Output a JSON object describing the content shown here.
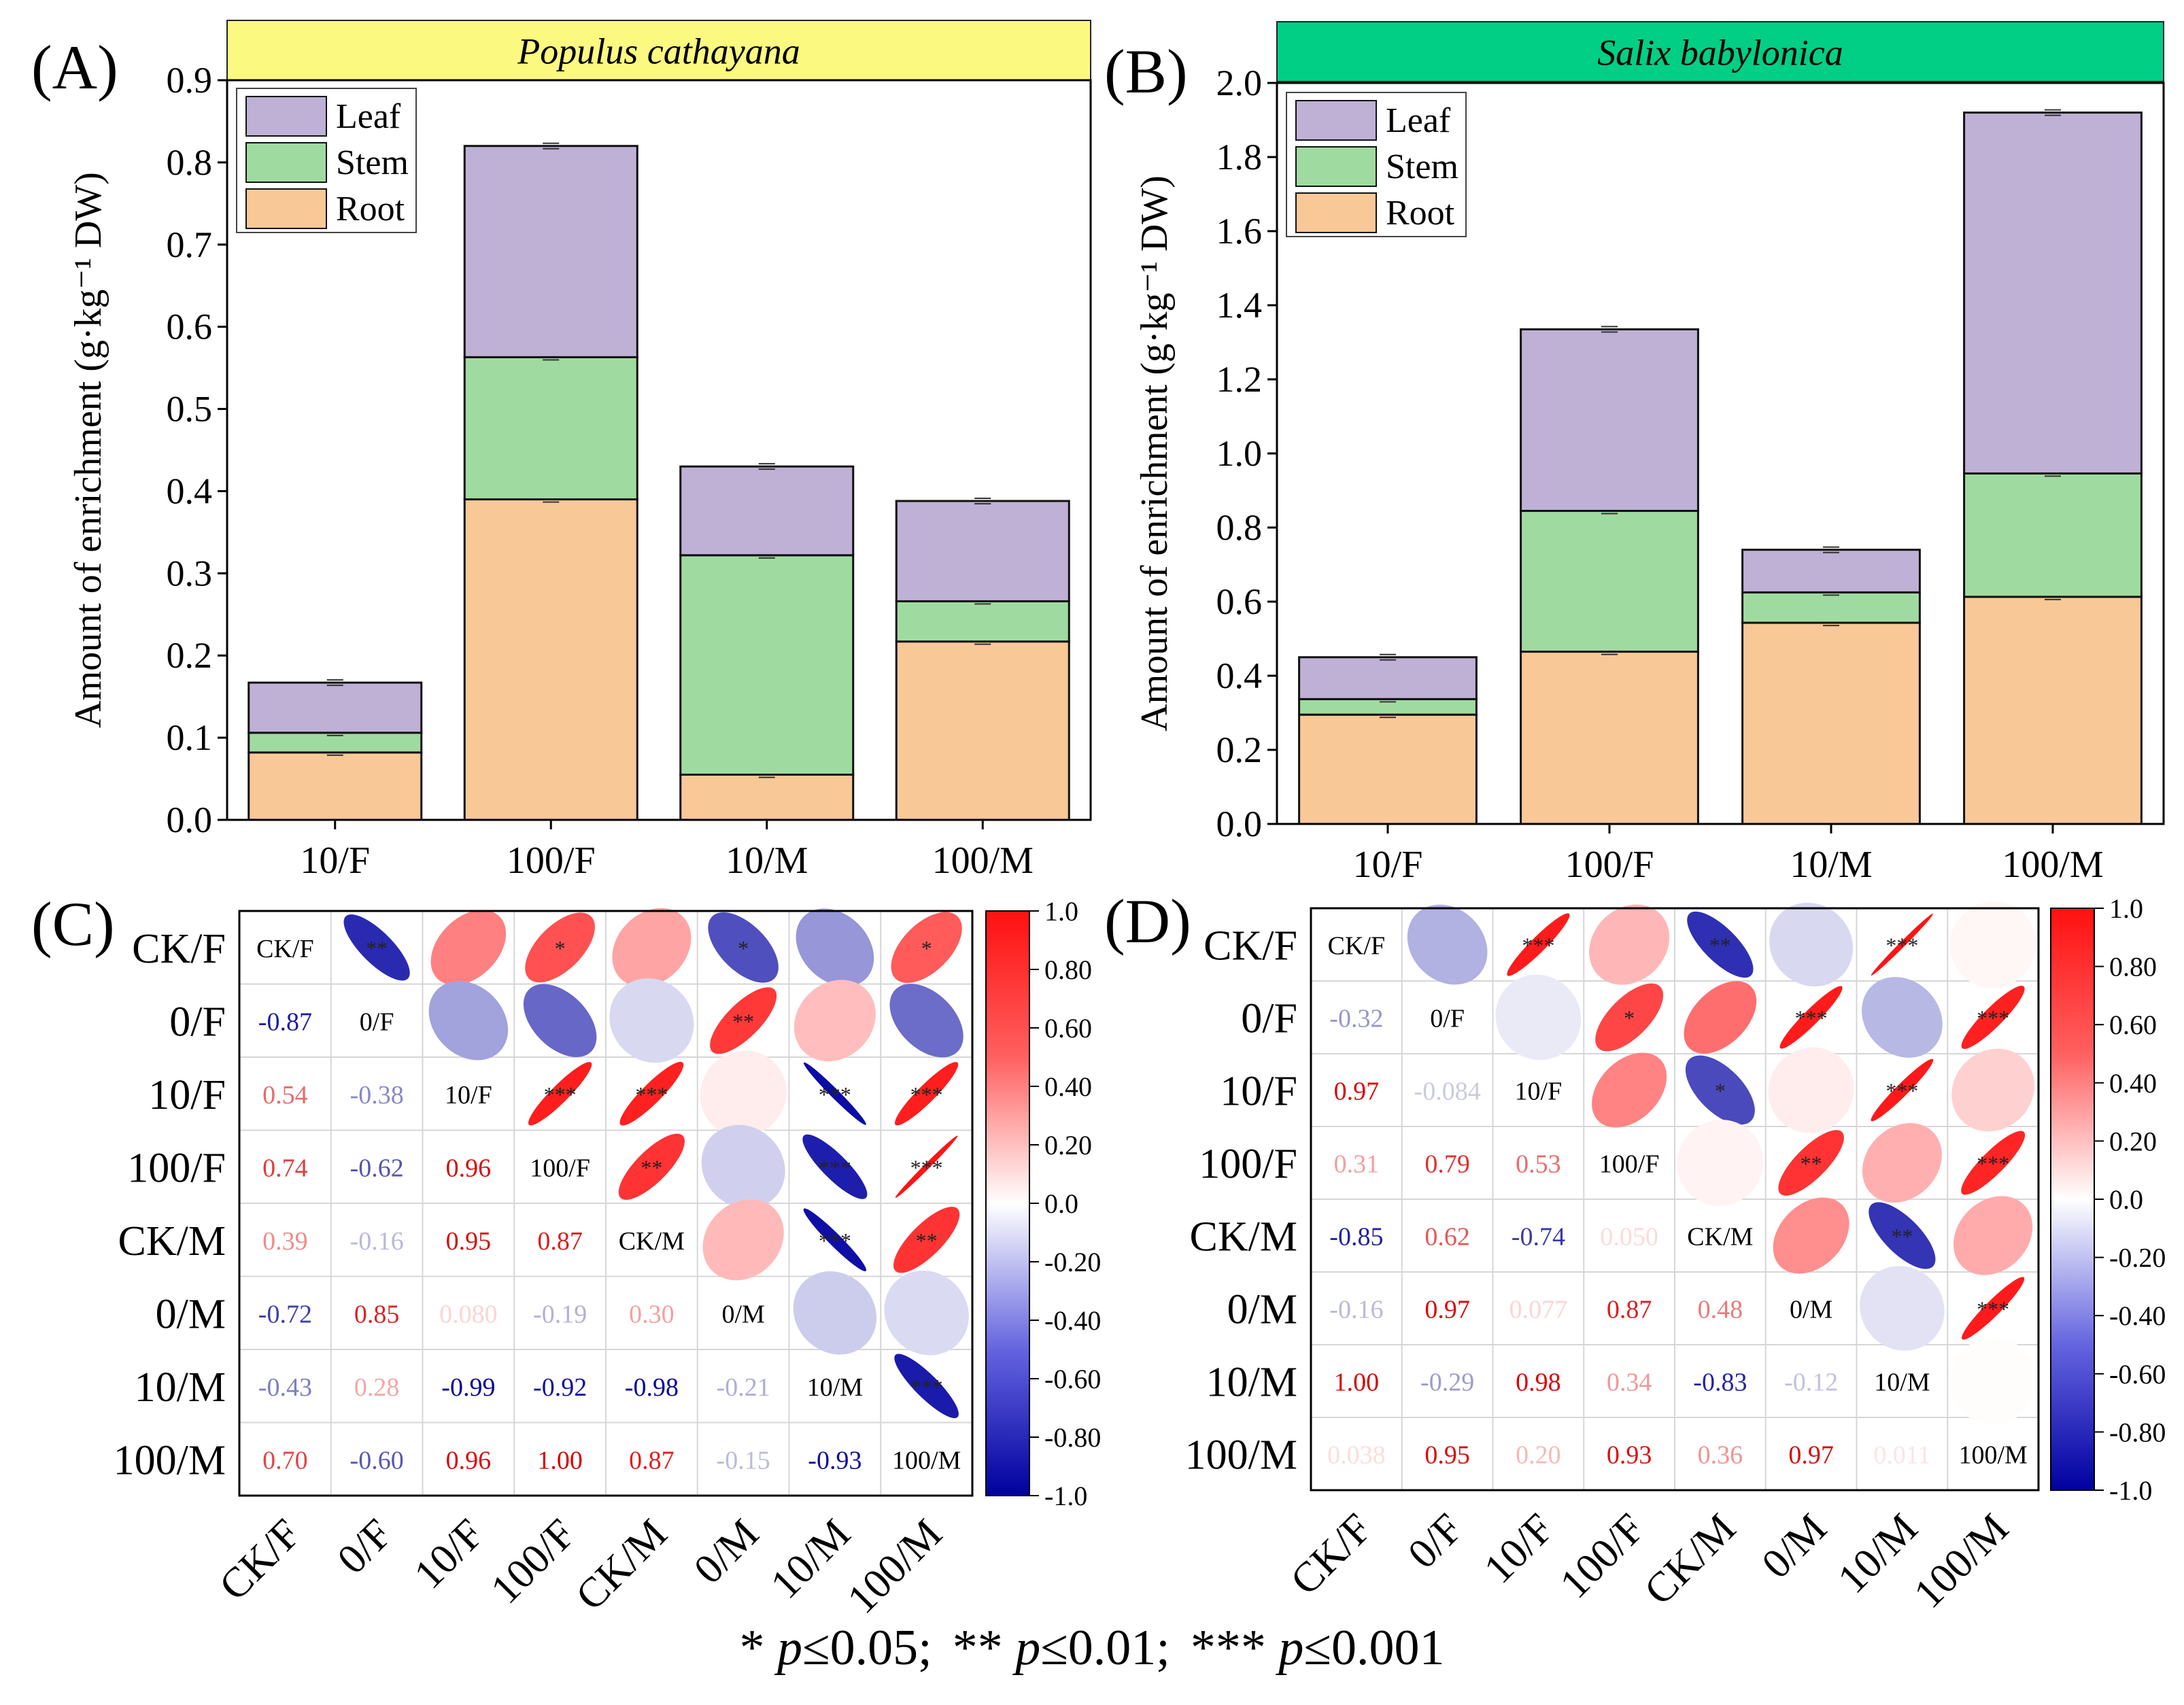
{
  "footnote": {
    "s1": "* ",
    "p1": "p",
    "t1": "≤0.05;",
    "s2": "** ",
    "p2": "p",
    "t2": "≤0.01;",
    "s3": "*** ",
    "p3": "p",
    "t3": "≤0.001"
  },
  "colors": {
    "leaf": "#bfb0d6",
    "stem": "#9fdba0",
    "root": "#f9c897",
    "banner_a": "#fbf980",
    "banner_b": "#00cf85",
    "neg": "#0a0aa6",
    "pos": "#ff1f1f"
  },
  "chart_data": [
    {
      "type": "bar",
      "stacked": true,
      "panel_label": "(A)",
      "title": "Populus cathayana",
      "ylabel": "Amount of enrichment (g·kg⁻¹ DW)",
      "ylim": [
        0,
        0.9
      ],
      "yticks": [
        "0.0",
        "0.1",
        "0.2",
        "0.3",
        "0.4",
        "0.5",
        "0.6",
        "0.7",
        "0.8",
        "0.9"
      ],
      "categories": [
        "10/F",
        "100/F",
        "10/M",
        "100/M"
      ],
      "legend": "top-left",
      "series": [
        {
          "name": "Root",
          "values": [
            0.082,
            0.39,
            0.055,
            0.217
          ]
        },
        {
          "name": "Stem",
          "values": [
            0.024,
            0.173,
            0.267,
            0.049
          ]
        },
        {
          "name": "Leaf",
          "values": [
            0.061,
            0.257,
            0.108,
            0.122
          ]
        }
      ],
      "totals": [
        0.167,
        0.82,
        0.43,
        0.388
      ]
    },
    {
      "type": "bar",
      "stacked": true,
      "panel_label": "(B)",
      "title": "Salix babylonica",
      "ylabel": "Amount of enrichment (g·kg⁻¹ DW)",
      "ylim": [
        0,
        2.0
      ],
      "yticks": [
        "0.0",
        "0.2",
        "0.4",
        "0.6",
        "0.8",
        "1.0",
        "1.2",
        "1.4",
        "1.6",
        "1.8",
        "2.0"
      ],
      "categories": [
        "10/F",
        "100/F",
        "10/M",
        "100/M"
      ],
      "legend": "top-left",
      "series": [
        {
          "name": "Root",
          "values": [
            0.295,
            0.465,
            0.543,
            0.613
          ]
        },
        {
          "name": "Stem",
          "values": [
            0.042,
            0.38,
            0.082,
            0.333
          ]
        },
        {
          "name": "Leaf",
          "values": [
            0.113,
            0.49,
            0.115,
            0.974
          ]
        }
      ],
      "totals": [
        0.45,
        1.335,
        0.74,
        1.92
      ]
    },
    {
      "type": "heatmap",
      "panel_label": "(C)",
      "labels": [
        "CK/F",
        "0/F",
        "10/F",
        "100/F",
        "CK/M",
        "0/M",
        "10/M",
        "100/M"
      ],
      "values": [
        [
          1,
          -0.87,
          0.54,
          0.74,
          0.39,
          -0.72,
          -0.43,
          0.7
        ],
        [
          -0.87,
          1,
          -0.38,
          -0.62,
          -0.16,
          0.85,
          0.28,
          -0.6
        ],
        [
          0.54,
          -0.38,
          1,
          0.96,
          0.95,
          0.08,
          -0.99,
          0.96
        ],
        [
          0.74,
          -0.62,
          0.96,
          1,
          0.87,
          -0.19,
          -0.92,
          1.0
        ],
        [
          0.39,
          -0.16,
          0.95,
          0.87,
          1,
          0.3,
          -0.98,
          0.87
        ],
        [
          -0.72,
          0.85,
          0.08,
          -0.19,
          0.3,
          1,
          -0.21,
          -0.15
        ],
        [
          -0.43,
          0.28,
          -0.99,
          -0.92,
          -0.98,
          -0.21,
          1,
          -0.93
        ],
        [
          0.7,
          -0.6,
          0.96,
          1.0,
          0.87,
          -0.15,
          -0.93,
          1
        ]
      ],
      "lower_text": [
        [],
        [
          "-0.87"
        ],
        [
          "0.54",
          "-0.38"
        ],
        [
          "0.74",
          "-0.62",
          "0.96"
        ],
        [
          "0.39",
          "-0.16",
          "0.95",
          "0.87"
        ],
        [
          "-0.72",
          "0.85",
          "0.080",
          "-0.19",
          "0.30"
        ],
        [
          "-0.43",
          "0.28",
          "-0.99",
          "-0.92",
          "-0.98",
          "-0.21"
        ],
        [
          "0.70",
          "-0.60",
          "0.96",
          "1.00",
          "0.87",
          "-0.15",
          "-0.93"
        ]
      ],
      "significance": [
        [
          "",
          "**",
          "",
          "*",
          "",
          "*",
          "",
          "*"
        ],
        [
          "",
          "",
          "",
          "",
          "",
          "**",
          "",
          ""
        ],
        [
          "",
          "",
          "",
          "***",
          "***",
          "",
          "***",
          "***"
        ],
        [
          "",
          "",
          "",
          "",
          "**",
          "",
          "***",
          "***"
        ],
        [
          "",
          "",
          "",
          "",
          "",
          "",
          "***",
          "**"
        ],
        [
          "",
          "",
          "",
          "",
          "",
          "",
          "",
          ""
        ],
        [
          "",
          "",
          "",
          "",
          "",
          "",
          "",
          "***"
        ],
        [
          "",
          "",
          "",
          "",
          "",
          "",
          "",
          ""
        ]
      ],
      "colorbar_ticks": [
        "1.0",
        "0.80",
        "0.60",
        "0.40",
        "0.20",
        "0.0",
        "-0.20",
        "-0.40",
        "-0.60",
        "-0.80",
        "-1.0"
      ]
    },
    {
      "type": "heatmap",
      "panel_label": "(D)",
      "labels": [
        "CK/F",
        "0/F",
        "10/F",
        "100/F",
        "CK/M",
        "0/M",
        "10/M",
        "100/M"
      ],
      "values": [
        [
          1,
          -0.32,
          0.97,
          0.31,
          -0.85,
          -0.16,
          1.0,
          0.038
        ],
        [
          -0.32,
          1,
          -0.084,
          0.79,
          0.62,
          0.97,
          -0.29,
          0.95
        ],
        [
          0.97,
          -0.084,
          1,
          0.53,
          -0.74,
          0.077,
          0.98,
          0.2
        ],
        [
          0.31,
          0.79,
          0.53,
          1,
          0.05,
          0.87,
          0.34,
          0.93
        ],
        [
          -0.85,
          0.62,
          -0.74,
          0.05,
          1,
          0.48,
          -0.83,
          0.36
        ],
        [
          -0.16,
          0.97,
          0.077,
          0.87,
          0.48,
          1,
          -0.12,
          0.97
        ],
        [
          1.0,
          -0.29,
          0.98,
          0.34,
          -0.83,
          -0.12,
          1,
          0.011
        ],
        [
          0.038,
          0.95,
          0.2,
          0.93,
          0.36,
          0.97,
          0.011,
          1
        ]
      ],
      "lower_text": [
        [],
        [
          "-0.32"
        ],
        [
          "0.97",
          "-0.084"
        ],
        [
          "0.31",
          "0.79",
          "0.53"
        ],
        [
          "-0.85",
          "0.62",
          "-0.74",
          "0.050"
        ],
        [
          "-0.16",
          "0.97",
          "0.077",
          "0.87",
          "0.48"
        ],
        [
          "1.00",
          "-0.29",
          "0.98",
          "0.34",
          "-0.83",
          "-0.12"
        ],
        [
          "0.038",
          "0.95",
          "0.20",
          "0.93",
          "0.36",
          "0.97",
          "0.011"
        ]
      ],
      "significance": [
        [
          "",
          "",
          "***",
          "",
          "**",
          "",
          "***",
          ""
        ],
        [
          "",
          "",
          "",
          "*",
          "",
          "***",
          "",
          "***"
        ],
        [
          "",
          "",
          "",
          "",
          "*",
          "",
          "***",
          ""
        ],
        [
          "",
          "",
          "",
          "",
          "",
          "**",
          "",
          "***"
        ],
        [
          "",
          "",
          "",
          "",
          "",
          "",
          "**",
          ""
        ],
        [
          "",
          "",
          "",
          "",
          "",
          "",
          "",
          "***"
        ],
        [
          "",
          "",
          "",
          "",
          "",
          "",
          "",
          ""
        ],
        [
          "",
          "",
          "",
          "",
          "",
          "",
          "",
          ""
        ]
      ],
      "colorbar_ticks": [
        "1.0",
        "0.80",
        "0.60",
        "0.40",
        "0.20",
        "0.0",
        "-0.20",
        "-0.40",
        "-0.60",
        "-0.80",
        "-1.0"
      ]
    }
  ]
}
